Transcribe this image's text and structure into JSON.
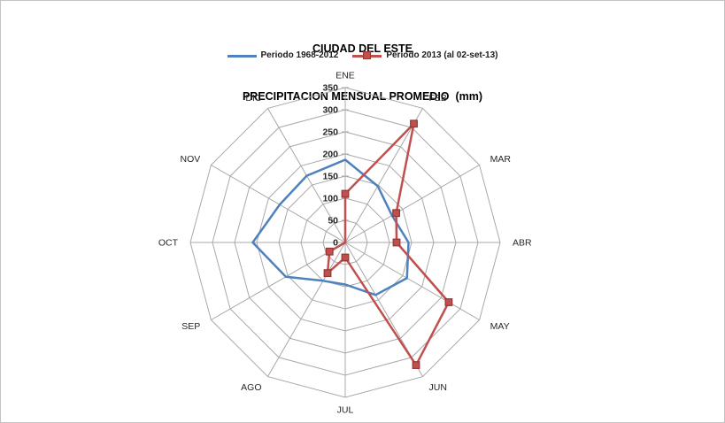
{
  "chart_data": {
    "type": "radar",
    "title": "CIUDAD DEL ESTE",
    "subtitle": "PRECIPITACION MENSUAL PROMEDIO  (mm)",
    "categories": [
      "ENE",
      "FEB",
      "MAR",
      "ABR",
      "MAY",
      "JUN",
      "JUL",
      "AGO",
      "SEP",
      "OCT",
      "NOV",
      "DIC"
    ],
    "series": [
      {
        "name": "Periodo 1968-2012",
        "color": "#4F81BD",
        "marker": "none",
        "values": [
          187,
          147,
          122,
          143,
          161,
          137,
          95,
          100,
          155,
          209,
          171,
          174
        ]
      },
      {
        "name": "Periodo 2013 (al 02-set-13)",
        "color": "#C0504D",
        "marker": "square",
        "marker_border": "#943634",
        "values": [
          110,
          310,
          133,
          116,
          270,
          320,
          34,
          80,
          41,
          null,
          null,
          null
        ],
        "empty_cells_plotted_as_zero": true
      }
    ],
    "radial_axis": {
      "min": 0,
      "max": 350,
      "step": 50,
      "tick_labels": [
        "0",
        "50",
        "100",
        "150",
        "200",
        "250",
        "300",
        "350"
      ]
    },
    "grid": "on",
    "grid_color": "#A8A8A8",
    "text_color": "#262626",
    "legend_position": "top"
  }
}
